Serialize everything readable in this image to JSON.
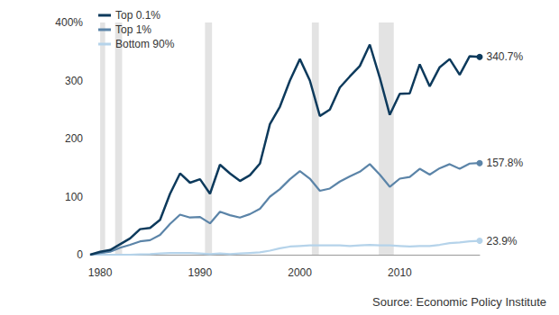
{
  "chart_data": {
    "type": "line",
    "source": "Source: Economic Policy Institute",
    "x": [
      1979,
      1980,
      1981,
      1982,
      1983,
      1984,
      1985,
      1986,
      1987,
      1988,
      1989,
      1990,
      1991,
      1992,
      1993,
      1994,
      1995,
      1996,
      1997,
      1998,
      1999,
      2000,
      2001,
      2002,
      2003,
      2004,
      2005,
      2006,
      2007,
      2008,
      2009,
      2010,
      2011,
      2012,
      2013,
      2014,
      2015,
      2016,
      2017,
      2018
    ],
    "series": [
      {
        "name": "Top 0.1%",
        "color": "#0d3a5c",
        "values": [
          0,
          5,
          8,
          18,
          28,
          44,
          46,
          60,
          105,
          140,
          124,
          130,
          105,
          155,
          140,
          127,
          137,
          157,
          225,
          255,
          300,
          337,
          300,
          239,
          250,
          288,
          307,
          325,
          362,
          305,
          241,
          277,
          278,
          328,
          290,
          323,
          337,
          310,
          342,
          340.7
        ],
        "value_labels": [
          null,
          null,
          null,
          null,
          null,
          null,
          null,
          null,
          null,
          null,
          null,
          null,
          null,
          null,
          null,
          null,
          null,
          null,
          null,
          null,
          null,
          null,
          null,
          null,
          null,
          null,
          null,
          null,
          null,
          null,
          null,
          null,
          null,
          null,
          null,
          null,
          null,
          null,
          null,
          "340.7%"
        ]
      },
      {
        "name": "Top 1%",
        "color": "#5b84a8",
        "values": [
          0,
          3,
          5,
          12,
          17,
          23,
          25,
          34,
          53,
          69,
          64,
          65,
          54,
          74,
          68,
          64,
          70,
          79,
          100,
          113,
          130,
          144,
          131,
          110,
          114,
          126,
          135,
          143,
          156,
          138,
          117,
          131,
          134,
          148,
          138,
          149,
          156,
          148,
          157,
          157.8
        ],
        "value_labels": [
          null,
          null,
          null,
          null,
          null,
          null,
          null,
          null,
          null,
          null,
          null,
          null,
          null,
          null,
          null,
          null,
          null,
          null,
          null,
          null,
          null,
          null,
          null,
          null,
          null,
          null,
          null,
          null,
          null,
          null,
          null,
          null,
          null,
          null,
          null,
          null,
          null,
          null,
          null,
          "157.8%"
        ]
      },
      {
        "name": "Bottom 90%",
        "color": "#b5d3ea",
        "values": [
          0,
          0,
          0,
          0,
          0,
          0.5,
          1,
          2,
          3,
          3,
          3,
          2,
          1,
          2,
          1,
          2,
          3,
          4,
          7,
          11,
          14,
          15,
          16,
          16,
          16,
          16,
          15,
          16,
          17,
          16,
          16,
          15,
          14,
          15,
          15,
          17,
          20,
          21,
          23,
          23.9
        ],
        "value_labels": [
          null,
          null,
          null,
          null,
          null,
          null,
          null,
          null,
          null,
          null,
          null,
          null,
          null,
          null,
          null,
          null,
          null,
          null,
          null,
          null,
          null,
          null,
          null,
          null,
          null,
          null,
          null,
          null,
          null,
          null,
          null,
          null,
          null,
          null,
          null,
          null,
          null,
          null,
          null,
          "23.9%"
        ]
      }
    ],
    "recessions": [
      [
        1980,
        1980.5
      ],
      [
        1981.5,
        1982.2
      ],
      [
        1990.5,
        1991.2
      ],
      [
        2001.2,
        2001.9
      ],
      [
        2007.9,
        2009.4
      ]
    ],
    "xlim": [
      1979,
      2018
    ],
    "xticks": [
      1980,
      1990,
      2000,
      2010
    ],
    "ylim": [
      0,
      400
    ],
    "yticks": [
      0,
      100,
      200,
      300,
      {
        "value": 400,
        "label": "400%"
      }
    ],
    "grid": false,
    "legend": "upper left"
  }
}
